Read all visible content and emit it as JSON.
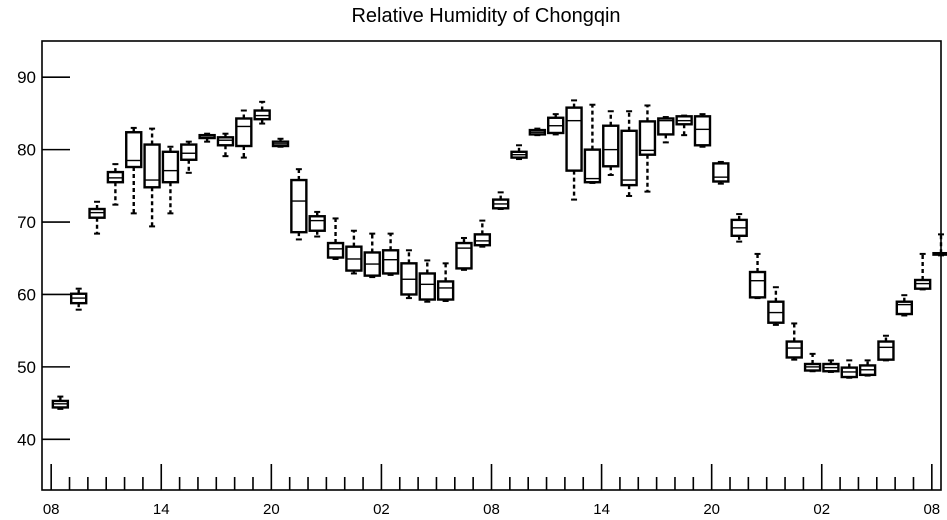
{
  "chart_data": {
    "type": "box",
    "title": "Relative Humidity of Chongqin",
    "xlabel": "",
    "ylabel": "",
    "ylim": [
      33,
      95
    ],
    "xlim": [
      0,
      49
    ],
    "y_ticks": [
      40,
      50,
      60,
      70,
      80,
      90
    ],
    "x_tick_labels": [
      {
        "x": 0.5,
        "label": "08"
      },
      {
        "x": 6.5,
        "label": "14"
      },
      {
        "x": 12.5,
        "label": "20"
      },
      {
        "x": 18.5,
        "label": "02"
      },
      {
        "x": 24.5,
        "label": "08"
      },
      {
        "x": 30.5,
        "label": "14"
      },
      {
        "x": 36.5,
        "label": "20"
      },
      {
        "x": 42.5,
        "label": "02"
      },
      {
        "x": 48.5,
        "label": "08"
      }
    ],
    "grid": false,
    "legend": "none",
    "boxes": [
      {
        "x": 1,
        "whisker_low": 44.2,
        "q1": 44.4,
        "median": 44.9,
        "q3": 45.3,
        "whisker_high": 45.9
      },
      {
        "x": 2,
        "whisker_low": 57.9,
        "q1": 58.8,
        "median": 59.5,
        "q3": 60.1,
        "whisker_high": 60.8
      },
      {
        "x": 3,
        "whisker_low": 68.4,
        "q1": 70.6,
        "median": 71.3,
        "q3": 71.8,
        "whisker_high": 72.8
      },
      {
        "x": 4,
        "whisker_low": 72.4,
        "q1": 75.5,
        "median": 76.1,
        "q3": 76.9,
        "whisker_high": 78.0
      },
      {
        "x": 5,
        "whisker_low": 71.2,
        "q1": 77.6,
        "median": 78.5,
        "q3": 82.4,
        "whisker_high": 83.0
      },
      {
        "x": 6,
        "whisker_low": 69.4,
        "q1": 74.8,
        "median": 75.8,
        "q3": 80.7,
        "whisker_high": 82.9
      },
      {
        "x": 7,
        "whisker_low": 71.2,
        "q1": 75.5,
        "median": 77.1,
        "q3": 79.7,
        "whisker_high": 80.4
      },
      {
        "x": 8,
        "whisker_low": 76.8,
        "q1": 78.6,
        "median": 79.5,
        "q3": 80.7,
        "whisker_high": 81.1
      },
      {
        "x": 9,
        "whisker_low": 81.1,
        "q1": 81.6,
        "median": 81.9,
        "q3": 82.0,
        "whisker_high": 82.2
      },
      {
        "x": 10,
        "whisker_low": 79.1,
        "q1": 80.6,
        "median": 81.3,
        "q3": 81.7,
        "whisker_high": 82.2
      },
      {
        "x": 11,
        "whisker_low": 78.9,
        "q1": 80.5,
        "median": 83.2,
        "q3": 84.3,
        "whisker_high": 85.4
      },
      {
        "x": 12,
        "whisker_low": 83.6,
        "q1": 84.2,
        "median": 84.7,
        "q3": 85.4,
        "whisker_high": 86.6
      },
      {
        "x": 13,
        "whisker_low": 80.4,
        "q1": 80.5,
        "median": 80.8,
        "q3": 81.1,
        "whisker_high": 81.5
      },
      {
        "x": 14,
        "whisker_low": 67.6,
        "q1": 68.6,
        "median": 72.9,
        "q3": 75.8,
        "whisker_high": 77.3
      },
      {
        "x": 15,
        "whisker_low": 68.0,
        "q1": 68.8,
        "median": 70.2,
        "q3": 70.8,
        "whisker_high": 71.4
      },
      {
        "x": 16,
        "whisker_low": 64.9,
        "q1": 65.1,
        "median": 66.3,
        "q3": 67.1,
        "whisker_high": 70.5
      },
      {
        "x": 17,
        "whisker_low": 62.9,
        "q1": 63.3,
        "median": 64.9,
        "q3": 66.6,
        "whisker_high": 68.8
      },
      {
        "x": 18,
        "whisker_low": 62.4,
        "q1": 62.6,
        "median": 64.2,
        "q3": 65.8,
        "whisker_high": 68.4
      },
      {
        "x": 19,
        "whisker_low": 62.7,
        "q1": 62.9,
        "median": 64.8,
        "q3": 66.1,
        "whisker_high": 68.4
      },
      {
        "x": 20,
        "whisker_low": 59.5,
        "q1": 60.0,
        "median": 62.1,
        "q3": 64.3,
        "whisker_high": 66.1
      },
      {
        "x": 21,
        "whisker_low": 59.0,
        "q1": 59.3,
        "median": 61.4,
        "q3": 62.9,
        "whisker_high": 64.7
      },
      {
        "x": 22,
        "whisker_low": 59.1,
        "q1": 59.3,
        "median": 60.9,
        "q3": 61.8,
        "whisker_high": 64.3
      },
      {
        "x": 23,
        "whisker_low": 63.4,
        "q1": 63.6,
        "median": 66.4,
        "q3": 67.1,
        "whisker_high": 67.8
      },
      {
        "x": 24,
        "whisker_low": 66.6,
        "q1": 66.8,
        "median": 67.4,
        "q3": 68.3,
        "whisker_high": 70.2
      },
      {
        "x": 25,
        "whisker_low": 71.8,
        "q1": 71.9,
        "median": 72.5,
        "q3": 73.1,
        "whisker_high": 74.1
      },
      {
        "x": 26,
        "whisker_low": 78.7,
        "q1": 78.9,
        "median": 79.3,
        "q3": 79.7,
        "whisker_high": 80.6
      },
      {
        "x": 27,
        "whisker_low": 82.0,
        "q1": 82.1,
        "median": 82.4,
        "q3": 82.7,
        "whisker_high": 82.9
      },
      {
        "x": 28,
        "whisker_low": 82.1,
        "q1": 82.3,
        "median": 83.3,
        "q3": 84.4,
        "whisker_high": 84.9
      },
      {
        "x": 29,
        "whisker_low": 73.1,
        "q1": 77.1,
        "median": 84.0,
        "q3": 85.8,
        "whisker_high": 86.8
      },
      {
        "x": 30,
        "whisker_low": 75.4,
        "q1": 75.5,
        "median": 76.0,
        "q3": 80.0,
        "whisker_high": 86.2
      },
      {
        "x": 31,
        "whisker_low": 76.5,
        "q1": 77.7,
        "median": 80.0,
        "q3": 83.3,
        "whisker_high": 85.3
      },
      {
        "x": 32,
        "whisker_low": 73.6,
        "q1": 75.1,
        "median": 75.8,
        "q3": 82.6,
        "whisker_high": 85.3
      },
      {
        "x": 33,
        "whisker_low": 74.2,
        "q1": 79.3,
        "median": 79.9,
        "q3": 83.9,
        "whisker_high": 86.1
      },
      {
        "x": 34,
        "whisker_low": 81.0,
        "q1": 82.1,
        "median": 84.0,
        "q3": 84.3,
        "whisker_high": 84.5
      },
      {
        "x": 35,
        "whisker_low": 82.0,
        "q1": 83.5,
        "median": 84.0,
        "q3": 84.6,
        "whisker_high": 84.7
      },
      {
        "x": 36,
        "whisker_low": 80.4,
        "q1": 80.6,
        "median": 82.8,
        "q3": 84.6,
        "whisker_high": 84.9
      },
      {
        "x": 37,
        "whisker_low": 75.3,
        "q1": 75.6,
        "median": 76.2,
        "q3": 78.1,
        "whisker_high": 78.3
      },
      {
        "x": 38,
        "whisker_low": 67.3,
        "q1": 68.1,
        "median": 69.2,
        "q3": 70.3,
        "whisker_high": 71.1
      },
      {
        "x": 39,
        "whisker_low": 59.5,
        "q1": 59.6,
        "median": 61.9,
        "q3": 63.1,
        "whisker_high": 65.6
      },
      {
        "x": 40,
        "whisker_low": 55.8,
        "q1": 56.1,
        "median": 57.5,
        "q3": 59.0,
        "whisker_high": 61.0
      },
      {
        "x": 41,
        "whisker_low": 51.0,
        "q1": 51.3,
        "median": 52.6,
        "q3": 53.5,
        "whisker_high": 56.0
      },
      {
        "x": 42,
        "whisker_low": 49.4,
        "q1": 49.5,
        "median": 50.0,
        "q3": 50.4,
        "whisker_high": 51.8
      },
      {
        "x": 43,
        "whisker_low": 49.3,
        "q1": 49.4,
        "median": 49.9,
        "q3": 50.4,
        "whisker_high": 50.9
      },
      {
        "x": 44,
        "whisker_low": 48.5,
        "q1": 48.6,
        "median": 49.3,
        "q3": 49.9,
        "whisker_high": 50.9
      },
      {
        "x": 45,
        "whisker_low": 48.8,
        "q1": 48.9,
        "median": 49.6,
        "q3": 50.2,
        "whisker_high": 50.9
      },
      {
        "x": 46,
        "whisker_low": 50.9,
        "q1": 51.0,
        "median": 52.7,
        "q3": 53.5,
        "whisker_high": 54.3
      },
      {
        "x": 47,
        "whisker_low": 57.1,
        "q1": 57.3,
        "median": 58.6,
        "q3": 59.0,
        "whisker_high": 59.9
      },
      {
        "x": 48,
        "whisker_low": 60.7,
        "q1": 60.8,
        "median": 61.5,
        "q3": 62.0,
        "whisker_high": 65.6
      },
      {
        "x": 49,
        "whisker_low": 65.4,
        "q1": 65.5,
        "median": 65.6,
        "q3": 65.7,
        "whisker_high": 68.3
      }
    ]
  }
}
